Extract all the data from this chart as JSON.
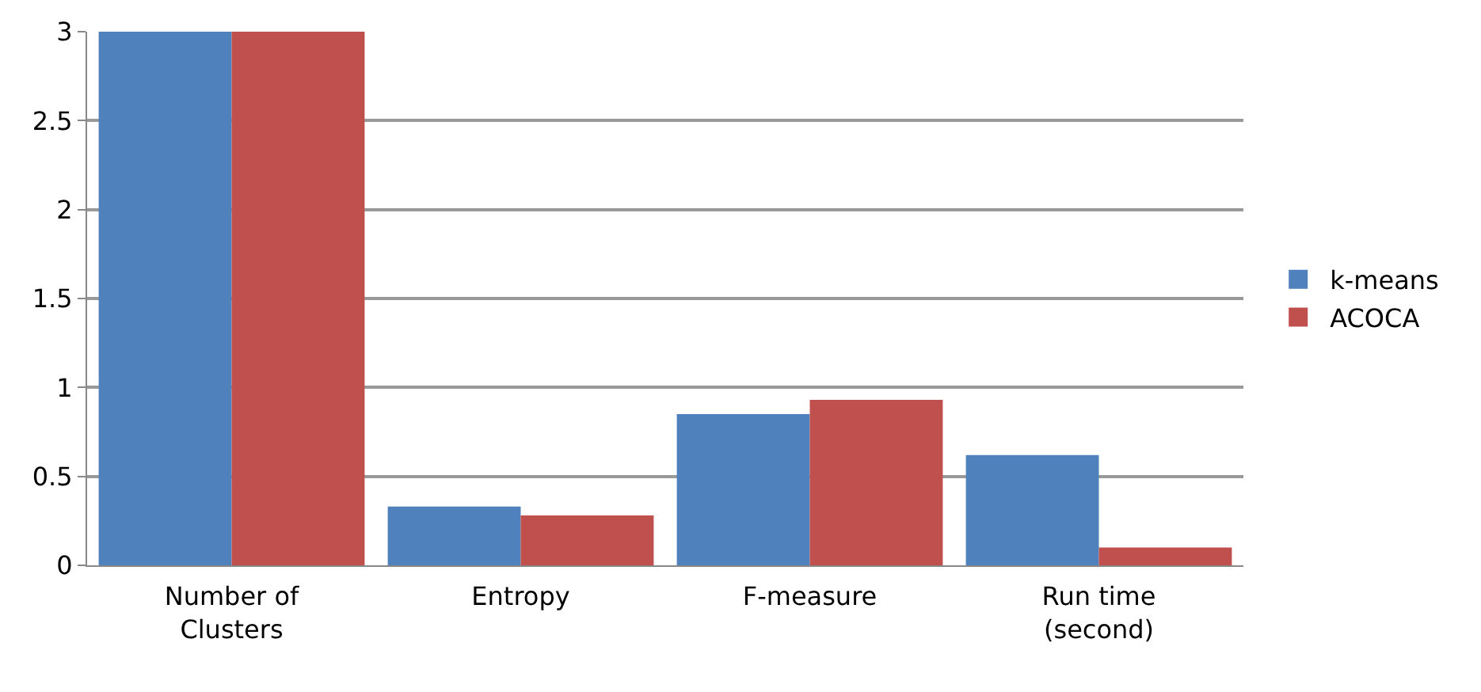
{
  "chart_data": {
    "type": "bar",
    "categories": [
      "Number of Clusters",
      "Entropy",
      "F-measure",
      "Run time (second)"
    ],
    "series": [
      {
        "name": "k-means",
        "color": "#4f81bd",
        "values": [
          3,
          0.33,
          0.85,
          0.62
        ]
      },
      {
        "name": "ACOCA",
        "color": "#c0504d",
        "values": [
          3,
          0.28,
          0.93,
          0.1
        ]
      }
    ],
    "ylim": [
      0,
      3
    ],
    "yticks": [
      0,
      0.5,
      1,
      1.5,
      2,
      2.5,
      3
    ],
    "grid": "y",
    "legend": "right"
  }
}
